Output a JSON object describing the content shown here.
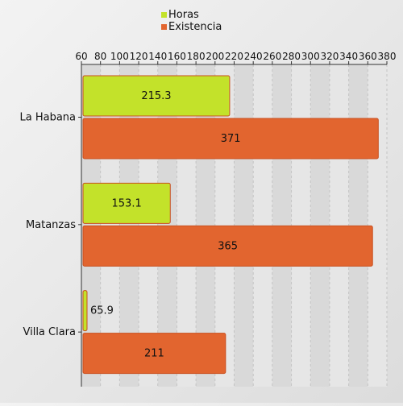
{
  "chart_data": {
    "type": "bar",
    "orientation": "horizontal",
    "categories": [
      "La Habana",
      "Matanzas",
      "Villa Clara"
    ],
    "series": [
      {
        "name": "Horas",
        "values": [
          215.3,
          153.1,
          65.9
        ],
        "color": "#c3e22a"
      },
      {
        "name": "Existencia",
        "values": [
          371,
          365,
          211
        ],
        "color": "#e2652f"
      }
    ],
    "x_ticks": [
      "60",
      "80",
      "100",
      "120",
      "140",
      "160",
      "180",
      "200",
      "220",
      "240",
      "260",
      "280",
      "300",
      "320",
      "340",
      "360",
      "380"
    ],
    "xlim": [
      60,
      380
    ],
    "x_axis_position": "top",
    "legend_position": "top-center",
    "grid": true,
    "data_labels": true
  }
}
